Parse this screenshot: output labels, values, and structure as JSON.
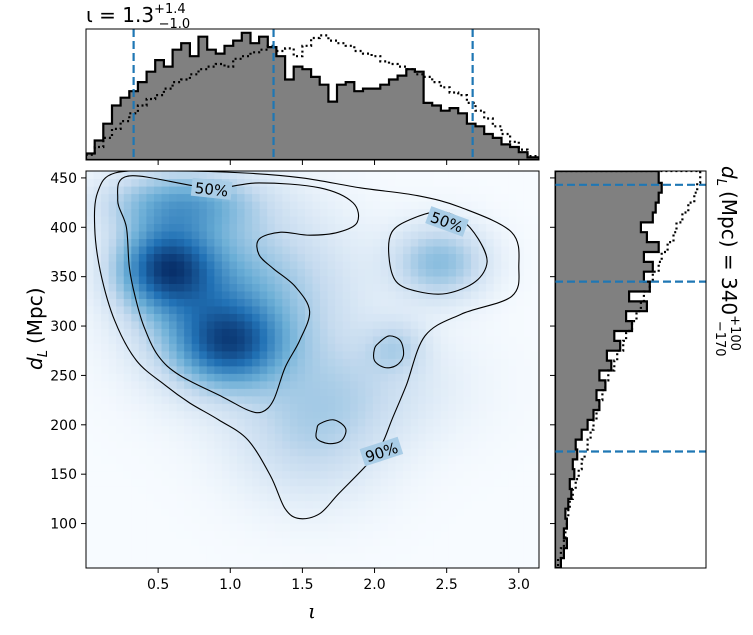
{
  "chart_data": {
    "type": "corner-plot",
    "panels": [
      {
        "id": "top-marginal",
        "type": "step-histogram",
        "title_main": "ι = 1.3",
        "title_sup": "+1.4",
        "title_sub": "−1.0",
        "x_range": [
          0.0,
          3.14
        ],
        "median": 1.3,
        "interval_lines": [
          0.33,
          1.3,
          2.68
        ],
        "series": [
          {
            "style": "filled-gray",
            "bin_edges": [
              0.0,
              0.06,
              0.12,
              0.18,
              0.24,
              0.3,
              0.36,
              0.42,
              0.48,
              0.54,
              0.6,
              0.66,
              0.72,
              0.78,
              0.84,
              0.9,
              0.96,
              1.02,
              1.08,
              1.14,
              1.2,
              1.26,
              1.32,
              1.38,
              1.44,
              1.5,
              1.56,
              1.62,
              1.68,
              1.74,
              1.8,
              1.86,
              1.92,
              1.98,
              2.04,
              2.1,
              2.16,
              2.22,
              2.28,
              2.34,
              2.4,
              2.46,
              2.52,
              2.58,
              2.64,
              2.7,
              2.76,
              2.82,
              2.88,
              2.94,
              3.0,
              3.06,
              3.14
            ],
            "values": [
              0.05,
              0.15,
              0.28,
              0.42,
              0.48,
              0.53,
              0.6,
              0.68,
              0.77,
              0.72,
              0.85,
              0.9,
              0.8,
              0.95,
              0.85,
              0.82,
              0.88,
              0.92,
              0.98,
              0.9,
              0.95,
              0.87,
              0.8,
              0.62,
              0.72,
              0.7,
              0.64,
              0.58,
              0.45,
              0.58,
              0.6,
              0.53,
              0.55,
              0.55,
              0.58,
              0.62,
              0.65,
              0.7,
              0.68,
              0.44,
              0.42,
              0.38,
              0.4,
              0.36,
              0.28,
              0.26,
              0.2,
              0.17,
              0.12,
              0.1,
              0.06,
              0.02
            ]
          },
          {
            "style": "dotted",
            "bin_edges": [
              0.0,
              0.06,
              0.12,
              0.18,
              0.24,
              0.3,
              0.36,
              0.42,
              0.48,
              0.54,
              0.6,
              0.66,
              0.72,
              0.78,
              0.84,
              0.9,
              0.96,
              1.02,
              1.08,
              1.14,
              1.2,
              1.26,
              1.32,
              1.38,
              1.44,
              1.5,
              1.56,
              1.62,
              1.68,
              1.74,
              1.8,
              1.86,
              1.92,
              1.98,
              2.04,
              2.1,
              2.16,
              2.22,
              2.28,
              2.34,
              2.4,
              2.46,
              2.52,
              2.58,
              2.64,
              2.7,
              2.76,
              2.82,
              2.88,
              2.94,
              3.0,
              3.06,
              3.14
            ],
            "values": [
              0.04,
              0.1,
              0.17,
              0.24,
              0.3,
              0.36,
              0.42,
              0.47,
              0.5,
              0.55,
              0.6,
              0.62,
              0.66,
              0.7,
              0.72,
              0.74,
              0.72,
              0.78,
              0.8,
              0.83,
              0.85,
              0.88,
              0.84,
              0.86,
              0.8,
              0.88,
              0.94,
              0.96,
              0.92,
              0.9,
              0.88,
              0.84,
              0.82,
              0.8,
              0.76,
              0.74,
              0.72,
              0.7,
              0.66,
              0.64,
              0.6,
              0.56,
              0.52,
              0.5,
              0.44,
              0.38,
              0.32,
              0.26,
              0.2,
              0.14,
              0.08,
              0.03
            ]
          }
        ]
      },
      {
        "id": "joint-density",
        "type": "density-contour",
        "xlabel": "ι",
        "ylabel_main": "d",
        "ylabel_sub": "L",
        "ylabel_unit": "(Mpc)",
        "x_range": [
          0.0,
          3.14
        ],
        "y_range": [
          55,
          457
        ],
        "x_ticks": [
          0.5,
          1.0,
          1.5,
          2.0,
          2.5,
          3.0
        ],
        "x_tick_labels": [
          "0.5",
          "1.0",
          "1.5",
          "2.0",
          "2.5",
          "3.0"
        ],
        "y_ticks": [
          100,
          150,
          200,
          250,
          300,
          350,
          400,
          450
        ],
        "y_tick_labels": [
          "100",
          "150",
          "200",
          "250",
          "300",
          "350",
          "400",
          "450"
        ],
        "colormap": [
          "#f7fbff",
          "#c6dbef",
          "#6baed6",
          "#2171b5",
          "#08306b"
        ],
        "density_blobs": [
          {
            "x": 0.55,
            "y": 360,
            "sx": 0.22,
            "sy": 28,
            "w": 1.0
          },
          {
            "x": 1.0,
            "y": 282,
            "sx": 0.25,
            "sy": 28,
            "w": 0.85
          },
          {
            "x": 0.65,
            "y": 425,
            "sx": 0.35,
            "sy": 22,
            "w": 0.55
          },
          {
            "x": 0.85,
            "y": 330,
            "sx": 0.35,
            "sy": 55,
            "w": 0.55
          },
          {
            "x": 2.45,
            "y": 365,
            "sx": 0.22,
            "sy": 25,
            "w": 0.45
          },
          {
            "x": 1.45,
            "y": 335,
            "sx": 0.35,
            "sy": 55,
            "w": 0.22
          },
          {
            "x": 2.15,
            "y": 280,
            "sx": 0.14,
            "sy": 18,
            "w": 0.22
          },
          {
            "x": 1.55,
            "y": 190,
            "sx": 0.35,
            "sy": 45,
            "w": 0.25
          },
          {
            "x": 1.9,
            "y": 240,
            "sx": 0.45,
            "sy": 40,
            "w": 0.18
          }
        ],
        "contours": [
          {
            "level_label": "90%",
            "label_pos": [
              2.05,
              172
            ],
            "label_rot": -18,
            "closed": true,
            "points": [
              [
                0.2,
                455
              ],
              [
                0.6,
                457
              ],
              [
                1.1,
                455
              ],
              [
                1.5,
                450
              ],
              [
                1.9,
                440
              ],
              [
                2.3,
                432
              ],
              [
                2.6,
                420
              ],
              [
                2.95,
                395
              ],
              [
                3.0,
                360
              ],
              [
                2.95,
                330
              ],
              [
                2.6,
                312
              ],
              [
                2.35,
                290
              ],
              [
                2.22,
                240
              ],
              [
                2.12,
                205
              ],
              [
                2.05,
                180
              ],
              [
                1.95,
                160
              ],
              [
                1.75,
                130
              ],
              [
                1.62,
                110
              ],
              [
                1.48,
                105
              ],
              [
                1.38,
                115
              ],
              [
                1.28,
                148
              ],
              [
                1.12,
                185
              ],
              [
                0.92,
                205
              ],
              [
                0.72,
                222
              ],
              [
                0.55,
                240
              ],
              [
                0.35,
                265
              ],
              [
                0.2,
                305
              ],
              [
                0.1,
                355
              ],
              [
                0.06,
                400
              ],
              [
                0.08,
                435
              ],
              [
                0.2,
                455
              ]
            ]
          },
          {
            "level_label": "50%",
            "label_pos": [
              0.87,
              438
            ],
            "label_rot": 6,
            "closed": true,
            "points": [
              [
                0.3,
                452
              ],
              [
                0.85,
                440
              ],
              [
                1.2,
                445
              ],
              [
                1.62,
                440
              ],
              [
                1.85,
                425
              ],
              [
                1.88,
                405
              ],
              [
                1.75,
                395
              ],
              [
                1.55,
                392
              ],
              [
                1.35,
                395
              ],
              [
                1.2,
                388
              ],
              [
                1.2,
                372
              ],
              [
                1.3,
                358
              ],
              [
                1.45,
                340
              ],
              [
                1.55,
                315
              ],
              [
                1.48,
                285
              ],
              [
                1.38,
                258
              ],
              [
                1.3,
                225
              ],
              [
                1.22,
                213
              ],
              [
                1.12,
                215
              ],
              [
                0.95,
                228
              ],
              [
                0.65,
                250
              ],
              [
                0.5,
                270
              ],
              [
                0.4,
                300
              ],
              [
                0.34,
                330
              ],
              [
                0.3,
                360
              ],
              [
                0.28,
                400
              ],
              [
                0.22,
                428
              ],
              [
                0.3,
                452
              ]
            ]
          },
          {
            "level_label": "50%",
            "label_pos": [
              2.5,
              405
            ],
            "label_rot": 20,
            "closed": true,
            "points": [
              [
                2.25,
                408
              ],
              [
                2.45,
                416
              ],
              [
                2.6,
                408
              ],
              [
                2.72,
                388
              ],
              [
                2.78,
                365
              ],
              [
                2.7,
                345
              ],
              [
                2.5,
                333
              ],
              [
                2.3,
                335
              ],
              [
                2.15,
                345
              ],
              [
                2.1,
                370
              ],
              [
                2.12,
                395
              ],
              [
                2.25,
                408
              ]
            ]
          },
          {
            "level_label": "",
            "closed": true,
            "points": [
              [
                2.03,
                283
              ],
              [
                2.1,
                290
              ],
              [
                2.18,
                285
              ],
              [
                2.2,
                270
              ],
              [
                2.15,
                260
              ],
              [
                2.07,
                258
              ],
              [
                2.0,
                265
              ],
              [
                2.0,
                277
              ],
              [
                2.03,
                283
              ]
            ]
          },
          {
            "level_label": "",
            "closed": true,
            "points": [
              [
                1.62,
                201
              ],
              [
                1.72,
                205
              ],
              [
                1.8,
                196
              ],
              [
                1.77,
                184
              ],
              [
                1.68,
                181
              ],
              [
                1.6,
                186
              ],
              [
                1.6,
                195
              ],
              [
                1.62,
                201
              ]
            ]
          }
        ]
      },
      {
        "id": "right-marginal",
        "type": "step-histogram-horizontal",
        "title_main": "d",
        "title_sub_L": "L",
        "title_unit": "(Mpc) = 340",
        "title_sup": "+100",
        "title_sub": "−170",
        "y_range": [
          55,
          457
        ],
        "interval_lines": [
          173,
          345,
          443
        ],
        "series": [
          {
            "style": "filled-gray",
            "bin_edges": [
              55,
              65,
              75,
              85,
              95,
              105,
              115,
              125,
              135,
              145,
              155,
              165,
              175,
              185,
              195,
              205,
              215,
              225,
              235,
              245,
              255,
              265,
              275,
              285,
              295,
              305,
              315,
              325,
              335,
              345,
              355,
              365,
              375,
              385,
              395,
              405,
              415,
              425,
              435,
              445,
              457
            ],
            "values": [
              0.04,
              0.06,
              0.08,
              0.06,
              0.08,
              0.07,
              0.09,
              0.11,
              0.1,
              0.13,
              0.12,
              0.15,
              0.14,
              0.18,
              0.22,
              0.26,
              0.3,
              0.28,
              0.34,
              0.3,
              0.38,
              0.35,
              0.44,
              0.4,
              0.52,
              0.48,
              0.62,
              0.5,
              0.64,
              0.6,
              0.66,
              0.6,
              0.7,
              0.62,
              0.58,
              0.66,
              0.68,
              0.7,
              0.72,
              0.7
            ]
          },
          {
            "style": "dotted",
            "bin_edges": [
              55,
              65,
              75,
              85,
              95,
              105,
              115,
              125,
              135,
              145,
              155,
              165,
              175,
              185,
              195,
              205,
              215,
              225,
              235,
              245,
              255,
              265,
              275,
              285,
              295,
              305,
              315,
              325,
              335,
              345,
              355,
              365,
              375,
              385,
              395,
              405,
              415,
              425,
              435,
              445,
              457
            ],
            "values": [
              0.02,
              0.04,
              0.06,
              0.07,
              0.08,
              0.09,
              0.1,
              0.12,
              0.14,
              0.16,
              0.18,
              0.2,
              0.22,
              0.24,
              0.26,
              0.28,
              0.3,
              0.32,
              0.34,
              0.36,
              0.4,
              0.42,
              0.46,
              0.48,
              0.52,
              0.55,
              0.58,
              0.6,
              0.64,
              0.66,
              0.7,
              0.72,
              0.76,
              0.8,
              0.82,
              0.86,
              0.9,
              0.94,
              0.96,
              0.98
            ]
          }
        ]
      }
    ]
  }
}
